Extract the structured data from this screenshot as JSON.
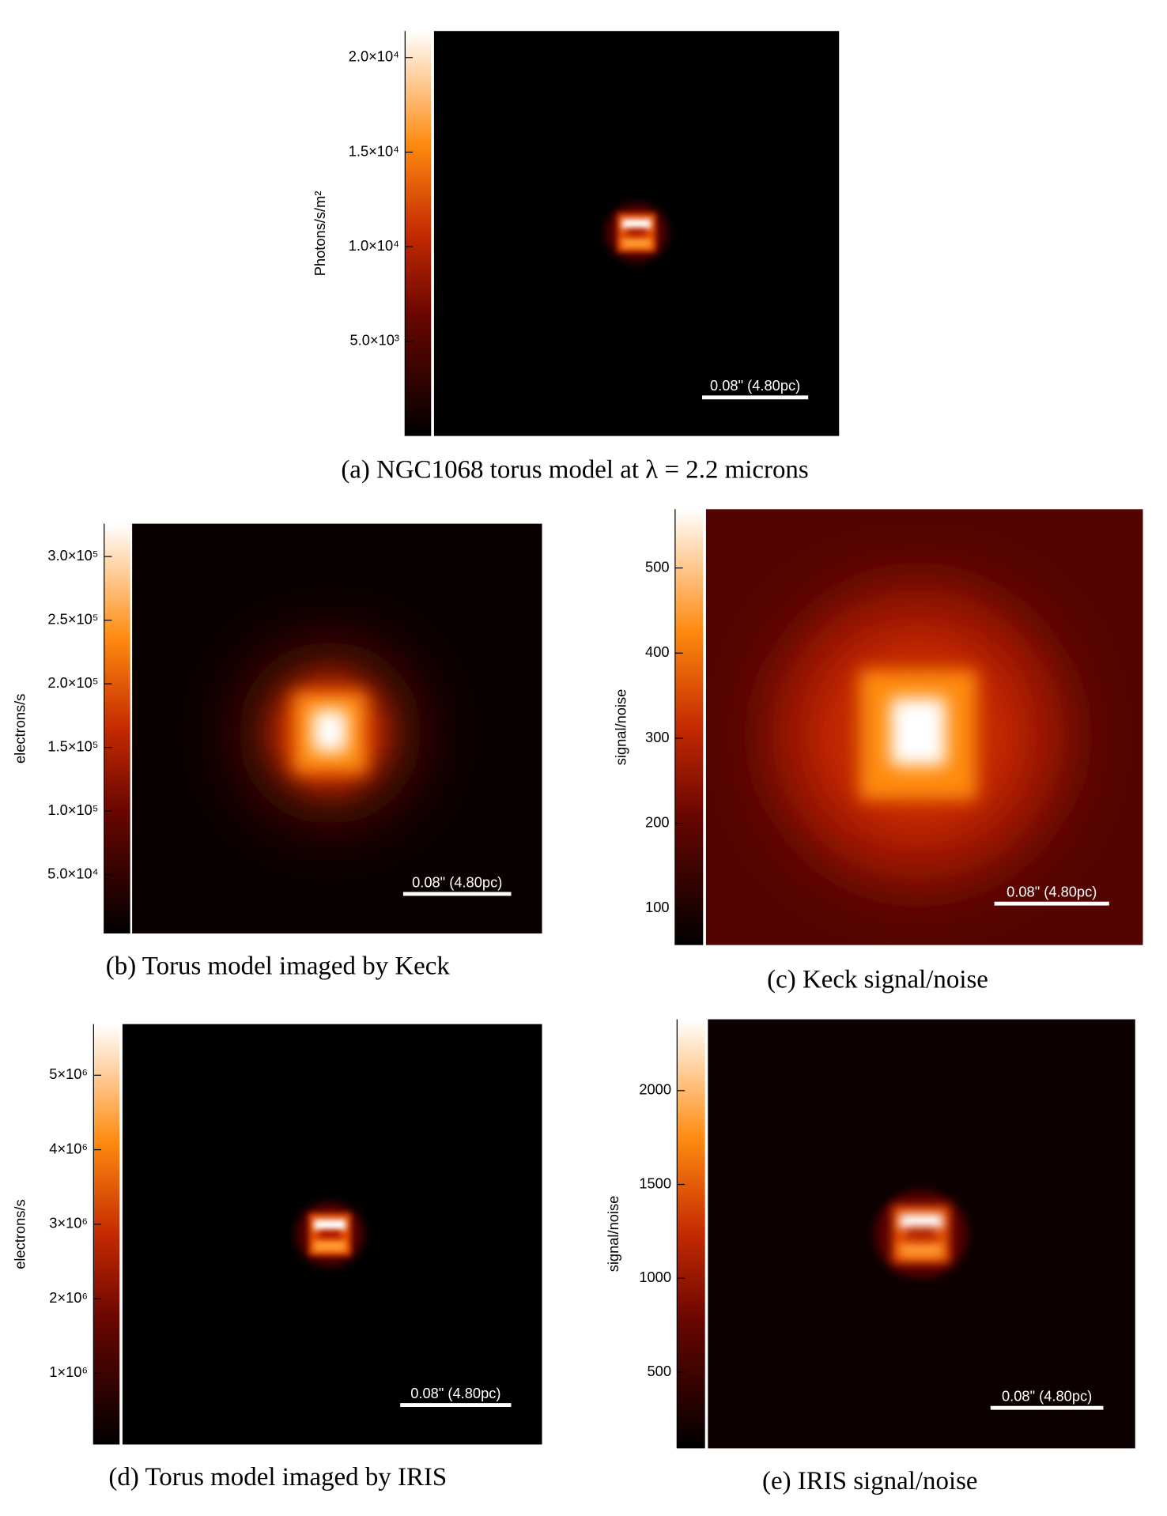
{
  "panels": [
    {
      "caption": "(a) NGC1068 torus model at λ = 2.2 microns",
      "colorbar_label": "Photons/s/m²",
      "clim": [
        0,
        21400
      ],
      "ticks": [
        {
          "value": 5000,
          "label": "5.0×10³"
        },
        {
          "value": 10000,
          "label": "1.0×10⁴"
        },
        {
          "value": 15000,
          "label": "1.5×10⁴"
        },
        {
          "value": 20000,
          "label": "2.0×10⁴"
        }
      ],
      "scale_bar": "0.08\" (4.80pc)"
    },
    {
      "caption": "(b) Torus model imaged by Keck",
      "colorbar_label": "electrons/s",
      "clim": [
        3800,
        325800
      ],
      "ticks": [
        {
          "value": 50000,
          "label": "5.0×10⁴"
        },
        {
          "value": 100000,
          "label": "1.0×10⁵"
        },
        {
          "value": 150000,
          "label": "1.5×10⁵"
        },
        {
          "value": 200000,
          "label": "2.0×10⁵"
        },
        {
          "value": 250000,
          "label": "2.5×10⁵"
        },
        {
          "value": 300000,
          "label": "3.0×10⁵"
        }
      ],
      "scale_bar": "0.08\" (4.80pc)"
    },
    {
      "caption": "(c) Keck signal/noise",
      "colorbar_label": "signal/noise",
      "clim": [
        57,
        569
      ],
      "ticks": [
        100,
        200,
        300,
        400,
        500
      ],
      "scale_bar": "0.08\" (4.80pc)"
    },
    {
      "caption": "(d) Torus model imaged by IRIS",
      "colorbar_label": "electrons/s",
      "clim": [
        43000,
        5686000
      ],
      "ticks": [
        {
          "value": 1000000,
          "label": "1×10⁶"
        },
        {
          "value": 2000000,
          "label": "2×10⁶"
        },
        {
          "value": 3000000,
          "label": "3×10⁶"
        },
        {
          "value": 4000000,
          "label": "4×10⁶"
        },
        {
          "value": 5000000,
          "label": "5×10⁶"
        }
      ],
      "scale_bar": "0.08\" (4.80pc)"
    },
    {
      "caption": "(e) IRIS signal/noise",
      "colorbar_label": "signal/noise",
      "clim": [
        94,
        2380
      ],
      "ticks": [
        500,
        1000,
        1500,
        2000
      ],
      "scale_bar": "0.08\" (4.80pc)"
    }
  ]
}
